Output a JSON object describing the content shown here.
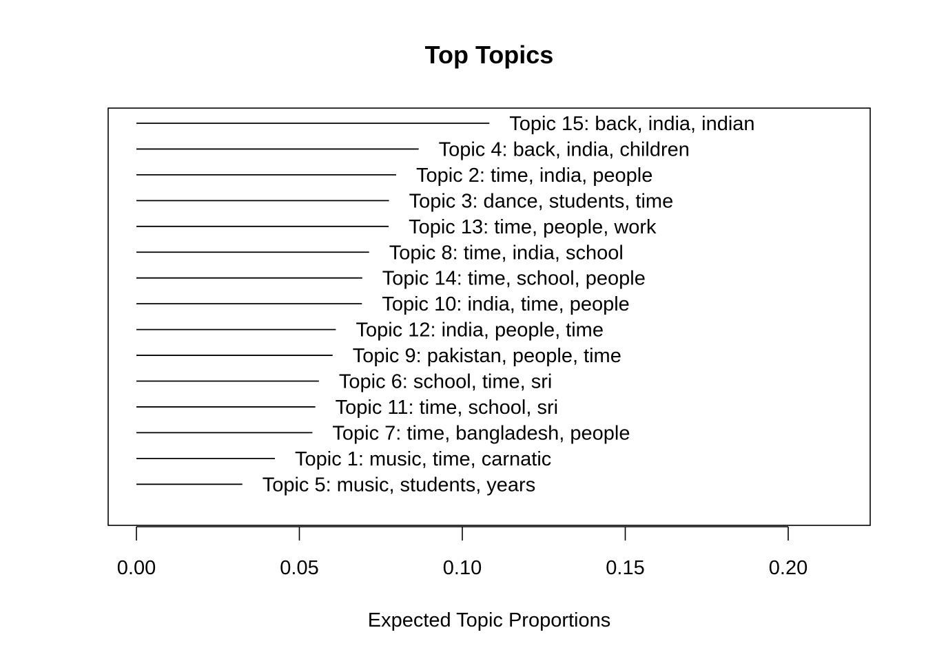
{
  "chart_data": {
    "type": "bar",
    "title": "Top Topics",
    "xlabel": "Expected Topic Proportions",
    "ylabel": "",
    "xlim": [
      0,
      0.225
    ],
    "xticks": [
      0.0,
      0.05,
      0.1,
      0.15,
      0.2
    ],
    "xtick_labels": [
      "0.00",
      "0.05",
      "0.10",
      "0.15",
      "0.20"
    ],
    "grid": false,
    "categories": [
      "Topic 15: back, india, indian",
      "Topic 4: back, india, children",
      "Topic 2: time, india, people",
      "Topic 3: dance, students, time",
      "Topic 13: time, people, work",
      "Topic 8: time, india, school",
      "Topic 14: time, school, people",
      "Topic 10: india, time, people",
      "Topic 12: india, people, time",
      "Topic 9: pakistan, people, time",
      "Topic 6: school, time, sri",
      "Topic 11: time, school, sri",
      "Topic 7: time, bangladesh, people",
      "Topic 1: music, time, carnatic",
      "Topic 5: music, students, years"
    ],
    "values": [
      0.1083,
      0.0866,
      0.0797,
      0.0775,
      0.0774,
      0.0714,
      0.0693,
      0.0692,
      0.0612,
      0.0602,
      0.056,
      0.0549,
      0.054,
      0.0425,
      0.0325
    ]
  }
}
